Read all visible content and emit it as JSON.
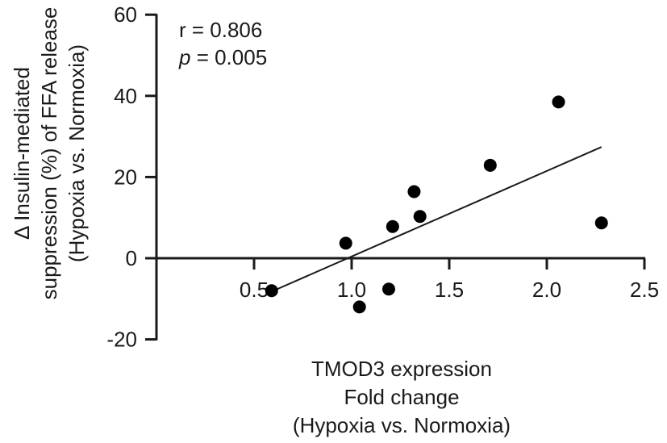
{
  "chart_data": {
    "type": "scatter",
    "title": "",
    "xlabel": [
      "TMOD3 expression",
      "Fold change",
      "(Hypoxia vs. Normoxia)"
    ],
    "ylabel": [
      "Δ Insulin-mediated",
      "suppression (%) of FFA release",
      "(Hypoxia vs. Normoxia)"
    ],
    "xlim": [
      0,
      2.5
    ],
    "ylim": [
      -20,
      60
    ],
    "x_ticks": [
      0.5,
      1.0,
      1.5,
      2.0,
      2.5
    ],
    "x_tick_labels": [
      "0.5",
      "1.0",
      "1.5",
      "2.0",
      "2.5"
    ],
    "y_ticks": [
      -20,
      0,
      20,
      40,
      60
    ],
    "y_tick_labels": [
      "-20",
      "0",
      "20",
      "40",
      "60"
    ],
    "points": [
      {
        "x": 0.59,
        "y": -8.0
      },
      {
        "x": 0.97,
        "y": 3.7
      },
      {
        "x": 1.04,
        "y": -12.0
      },
      {
        "x": 1.19,
        "y": -7.6
      },
      {
        "x": 1.21,
        "y": 7.8
      },
      {
        "x": 1.32,
        "y": 16.4
      },
      {
        "x": 1.35,
        "y": 10.3
      },
      {
        "x": 1.71,
        "y": 22.9
      },
      {
        "x": 2.06,
        "y": 38.5
      },
      {
        "x": 2.28,
        "y": 8.7
      }
    ],
    "fit_line": {
      "x": [
        0.6,
        2.28
      ],
      "y": [
        -8.0,
        27.4
      ]
    },
    "annotations": {
      "r_text": "r = 0.806",
      "p_symbol": "p",
      "p_value": " = 0.005"
    },
    "grid": false,
    "legend": "none"
  }
}
